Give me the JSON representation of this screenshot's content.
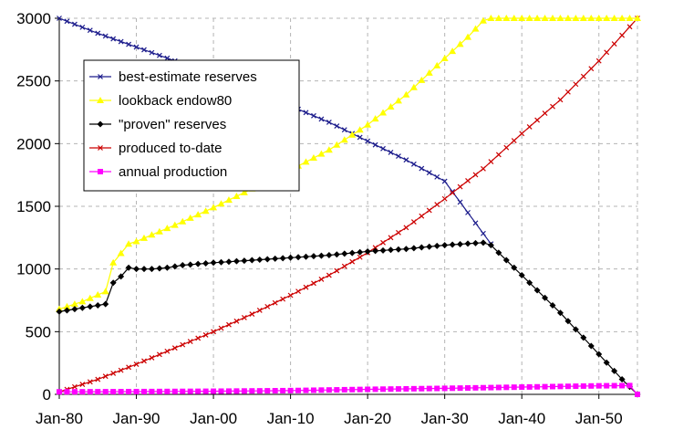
{
  "chart_data": {
    "type": "line",
    "title": "",
    "xlabel": "",
    "ylabel": "",
    "x_ticks": [
      "Jan-80",
      "Jan-90",
      "Jan-00",
      "Jan-10",
      "Jan-20",
      "Jan-30",
      "Jan-40",
      "Jan-50"
    ],
    "x_tick_years": [
      1980,
      1990,
      2000,
      2010,
      2020,
      2030,
      2040,
      2050
    ],
    "xlim": [
      1980,
      2055
    ],
    "ylim": [
      0,
      3000
    ],
    "y_ticks": [
      "0",
      "500",
      "1000",
      "1500",
      "2000",
      "2500",
      "3000"
    ],
    "y_tick_values": [
      0,
      500,
      1000,
      1500,
      2000,
      2500,
      3000
    ],
    "grid": "dashed horizontal and vertical",
    "plot_background": "#ffffff",
    "legend_position": "upper-left",
    "series": [
      {
        "name": "best-estimate reserves",
        "color": "#1c1c8c",
        "marker": "x",
        "points": [
          [
            1980,
            3000
          ],
          [
            1985,
            2880
          ],
          [
            1990,
            2770
          ],
          [
            1995,
            2660
          ],
          [
            2000,
            2550
          ],
          [
            2005,
            2430
          ],
          [
            2010,
            2300
          ],
          [
            2015,
            2170
          ],
          [
            2020,
            2020
          ],
          [
            2025,
            1870
          ],
          [
            2030,
            1700
          ],
          [
            2033,
            1450
          ],
          [
            2036,
            1200
          ]
        ]
      },
      {
        "name": "lookback endow80",
        "color": "#ffff00",
        "marker": "triangle",
        "points": [
          [
            1980,
            680
          ],
          [
            1983,
            740
          ],
          [
            1986,
            820
          ],
          [
            1987,
            1050
          ],
          [
            1989,
            1200
          ],
          [
            1990,
            1220
          ],
          [
            1995,
            1350
          ],
          [
            2000,
            1490
          ],
          [
            2005,
            1640
          ],
          [
            2010,
            1790
          ],
          [
            2015,
            1950
          ],
          [
            2020,
            2150
          ],
          [
            2025,
            2390
          ],
          [
            2030,
            2680
          ],
          [
            2033,
            2850
          ],
          [
            2035,
            2980
          ],
          [
            2036,
            3000
          ],
          [
            2045,
            3000
          ],
          [
            2055,
            3000
          ]
        ]
      },
      {
        "name": "\"proven\" reserves",
        "color": "#000000",
        "marker": "diamond",
        "points": [
          [
            1980,
            660
          ],
          [
            1982,
            680
          ],
          [
            1984,
            700
          ],
          [
            1986,
            720
          ],
          [
            1987,
            890
          ],
          [
            1988,
            940
          ],
          [
            1989,
            1010
          ],
          [
            1990,
            1000
          ],
          [
            1992,
            1000
          ],
          [
            1994,
            1010
          ],
          [
            1996,
            1030
          ],
          [
            1998,
            1040
          ],
          [
            2000,
            1050
          ],
          [
            2005,
            1070
          ],
          [
            2010,
            1090
          ],
          [
            2015,
            1110
          ],
          [
            2020,
            1140
          ],
          [
            2025,
            1160
          ],
          [
            2030,
            1190
          ],
          [
            2035,
            1210
          ],
          [
            2036,
            1190
          ],
          [
            2040,
            950
          ],
          [
            2045,
            650
          ],
          [
            2050,
            320
          ],
          [
            2053,
            120
          ],
          [
            2055,
            0
          ]
        ]
      },
      {
        "name": "produced to-date",
        "color": "#cc0000",
        "marker": "x",
        "points": [
          [
            1980,
            20
          ],
          [
            1985,
            120
          ],
          [
            1990,
            240
          ],
          [
            1995,
            370
          ],
          [
            2000,
            500
          ],
          [
            2005,
            640
          ],
          [
            2010,
            790
          ],
          [
            2015,
            950
          ],
          [
            2020,
            1130
          ],
          [
            2025,
            1330
          ],
          [
            2030,
            1560
          ],
          [
            2035,
            1800
          ],
          [
            2040,
            2080
          ],
          [
            2045,
            2350
          ],
          [
            2050,
            2660
          ],
          [
            2055,
            3000
          ]
        ]
      },
      {
        "name": "annual production",
        "color": "#ff00ff",
        "marker": "square",
        "points": [
          [
            1980,
            20
          ],
          [
            1990,
            22
          ],
          [
            2000,
            25
          ],
          [
            2010,
            30
          ],
          [
            2020,
            40
          ],
          [
            2030,
            48
          ],
          [
            2040,
            58
          ],
          [
            2050,
            68
          ],
          [
            2054,
            70
          ],
          [
            2055,
            0
          ]
        ]
      }
    ]
  }
}
